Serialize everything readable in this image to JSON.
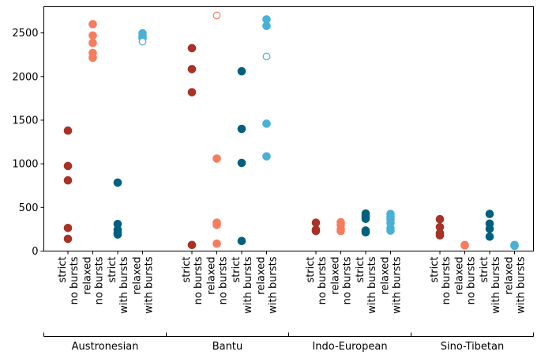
{
  "chart_data": {
    "type": "scatter",
    "title": "",
    "xlabel": "",
    "ylabel": "",
    "ylim": [
      0,
      2800
    ],
    "yticks": [
      0,
      500,
      1000,
      1500,
      2000,
      2500
    ],
    "grid": false,
    "legend": "none",
    "categories": [
      {
        "line1": "strict",
        "line2": "no bursts"
      },
      {
        "line1": "relaxed",
        "line2": "no bursts"
      },
      {
        "line1": "strict",
        "line2": "with bursts"
      },
      {
        "line1": "relaxed",
        "line2": "with bursts"
      }
    ],
    "category_colors": [
      "#a93226",
      "#f57c5f",
      "#00607f",
      "#4ab0d6"
    ],
    "groups": [
      {
        "name": "Austronesian",
        "series": [
          {
            "filled": [
              140,
              265,
              810,
              975,
              1380
            ],
            "hollow": []
          },
          {
            "filled": [
              2215,
              2270,
              2385,
              2470,
              2600
            ],
            "hollow": []
          },
          {
            "filled": [
              190,
              210,
              245,
              310,
              785
            ],
            "hollow": []
          },
          {
            "filled": [
              2440,
              2465,
              2495
            ],
            "hollow": [
              2400
            ]
          }
        ]
      },
      {
        "name": "Bantu",
        "series": [
          {
            "filled": [
              70,
              1820,
              2085,
              2325
            ],
            "hollow": []
          },
          {
            "filled": [
              85,
              300,
              325,
              1060
            ],
            "hollow": [
              2700
            ]
          },
          {
            "filled": [
              115,
              1010,
              1400,
              2060
            ],
            "hollow": []
          },
          {
            "filled": [
              1085,
              1460,
              2580,
              2655
            ],
            "hollow": [
              2230
            ]
          }
        ]
      },
      {
        "name": "Indo-European",
        "series": [
          {
            "filled": [
              230,
              245,
              325
            ],
            "hollow": []
          },
          {
            "filled": [
              230,
              250,
              300,
              330
            ],
            "hollow": []
          },
          {
            "filled": [
              215,
              235,
              370,
              400,
              430
            ],
            "hollow": []
          },
          {
            "filled": [
              235,
              260,
              320,
              365,
              395,
              425
            ],
            "hollow": []
          }
        ]
      },
      {
        "name": "Sino-Tibetan",
        "series": [
          {
            "filled": [
              180,
              205,
              275,
              365
            ],
            "hollow": []
          },
          {
            "filled": [
              65,
              70
            ],
            "hollow": []
          },
          {
            "filled": [
              165,
              255,
              315,
              425
            ],
            "hollow": []
          },
          {
            "filled": [
              60,
              70
            ],
            "hollow": []
          }
        ]
      }
    ]
  }
}
